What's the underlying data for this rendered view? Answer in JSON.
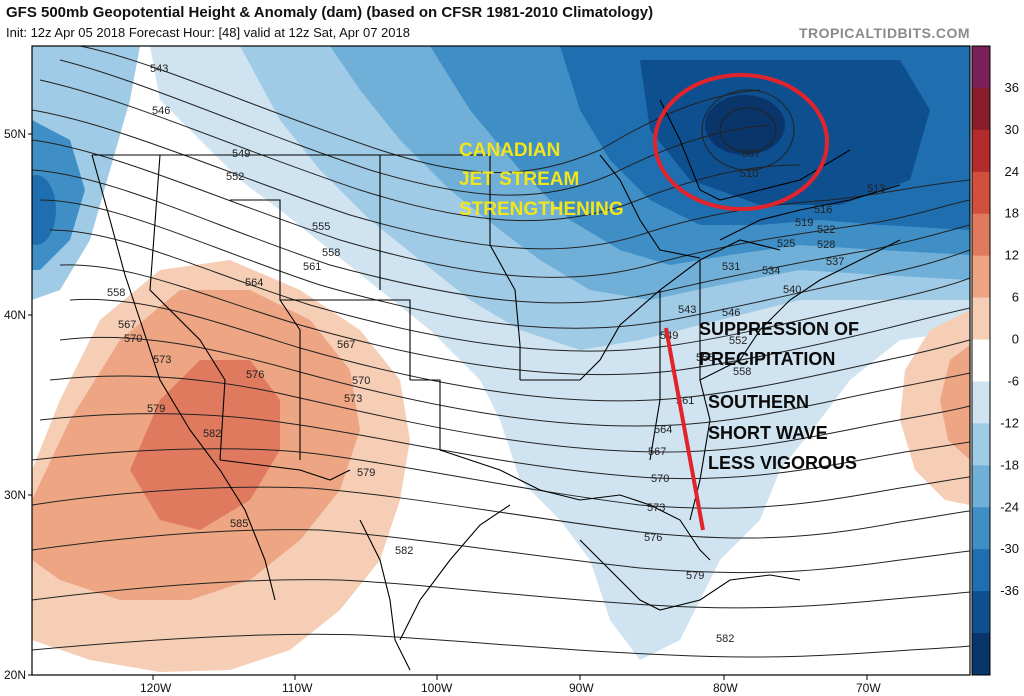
{
  "header": {
    "title": "GFS 500mb Geopotential Height & Anomaly (dam) (based on CFSR 1981-2010 Climatology)",
    "subtitle": "Init: 12z Apr 05 2018   Forecast Hour: [48]   valid at 12z Sat, Apr 07 2018",
    "brand": "TROPICALTIDBITS.COM"
  },
  "axes": {
    "lat_labels": [
      "50N",
      "40N",
      "30N",
      "20N"
    ],
    "lon_labels": [
      "120W",
      "110W",
      "100W",
      "90W",
      "80W",
      "70W"
    ]
  },
  "contour_labels": [
    "543",
    "546",
    "549",
    "552",
    "555",
    "558",
    "561",
    "564",
    "558",
    "567",
    "570",
    "573",
    "576",
    "579",
    "582",
    "585",
    "567",
    "570",
    "573",
    "579",
    "582",
    "507",
    "510",
    "513",
    "516",
    "519",
    "522",
    "525",
    "528",
    "531",
    "534",
    "537",
    "540",
    "543",
    "546",
    "549",
    "552",
    "555",
    "558",
    "561",
    "564",
    "567",
    "570",
    "573",
    "576",
    "579",
    "582"
  ],
  "colorbar": {
    "ticks": [
      "36",
      "30",
      "24",
      "18",
      "12",
      "6",
      "0",
      "-6",
      "-12",
      "-18",
      "-24",
      "-30",
      "-36"
    ],
    "colors": [
      "#7b1f5a",
      "#8a1d2a",
      "#b32b2b",
      "#d0503d",
      "#e07a5e",
      "#eda583",
      "#f6cdb5",
      "#ffffff",
      "#cfe3f1",
      "#9fcbe6",
      "#6fafd8",
      "#3f8fc6",
      "#1f6fb0",
      "#0e4f90",
      "#0a356a"
    ]
  },
  "annotations": {
    "jet_line1": "CANADIAN",
    "jet_line2": "JET STREAM",
    "jet_line3": "STRENGTHENING",
    "supp_line1": "SUPPRESSION OF",
    "supp_line2": "PRECIPITATION",
    "south_line1": "SOUTHERN",
    "south_line2": "SHORT WAVE",
    "south_line3": "LESS VIGOROUS"
  }
}
